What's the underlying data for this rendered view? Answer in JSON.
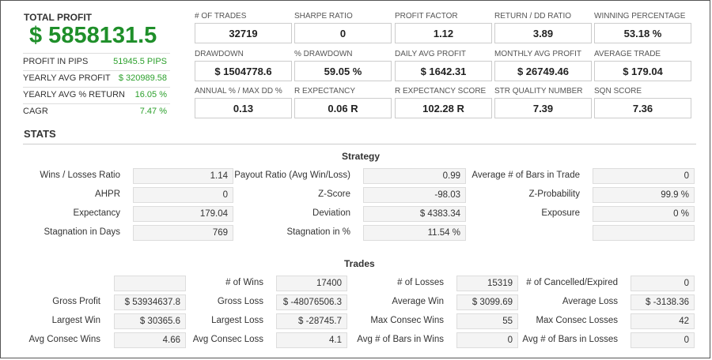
{
  "summary": {
    "total_profit_label": "TOTAL PROFIT",
    "total_profit_value": "$ 5858131.5",
    "rows": [
      {
        "label": "PROFIT IN PIPS",
        "value": "51945.5 PIPS"
      },
      {
        "label": "YEARLY AVG PROFIT",
        "value": "$ 320989.58"
      },
      {
        "label": "YEARLY AVG % RETURN",
        "value": "16.05 %"
      },
      {
        "label": "CAGR",
        "value": "7.47 %"
      }
    ]
  },
  "metrics": [
    {
      "label": "# OF TRADES",
      "value": "32719"
    },
    {
      "label": "SHARPE RATIO",
      "value": "0"
    },
    {
      "label": "PROFIT FACTOR",
      "value": "1.12"
    },
    {
      "label": "RETURN / DD RATIO",
      "value": "3.89"
    },
    {
      "label": "WINNING PERCENTAGE",
      "value": "53.18 %"
    },
    {
      "label": "DRAWDOWN",
      "value": "$ 1504778.6"
    },
    {
      "label": "% DRAWDOWN",
      "value": "59.05 %"
    },
    {
      "label": "DAILY AVG PROFIT",
      "value": "$ 1642.31"
    },
    {
      "label": "MONTHLY AVG PROFIT",
      "value": "$ 26749.46"
    },
    {
      "label": "AVERAGE TRADE",
      "value": "$ 179.04"
    },
    {
      "label": "ANNUAL % / MAX DD %",
      "value": "0.13"
    },
    {
      "label": "R EXPECTANCY",
      "value": "0.06 R"
    },
    {
      "label": "R EXPECTANCY SCORE",
      "value": "102.28 R"
    },
    {
      "label": "STR QUALITY NUMBER",
      "value": "7.39"
    },
    {
      "label": "SQN SCORE",
      "value": "7.36"
    }
  ],
  "stats_heading": "STATS",
  "strategy": {
    "title": "Strategy",
    "rows": [
      [
        {
          "label": "Wins / Losses Ratio",
          "value": "1.14"
        },
        {
          "label": "Payout Ratio (Avg Win/Loss)",
          "value": "0.99"
        },
        {
          "label": "Average # of Bars in Trade",
          "value": "0"
        }
      ],
      [
        {
          "label": "AHPR",
          "value": "0"
        },
        {
          "label": "Z-Score",
          "value": "-98.03"
        },
        {
          "label": "Z-Probability",
          "value": "99.9 %"
        }
      ],
      [
        {
          "label": "Expectancy",
          "value": "179.04"
        },
        {
          "label": "Deviation",
          "value": "$ 4383.34"
        },
        {
          "label": "Exposure",
          "value": "0 %"
        }
      ],
      [
        {
          "label": "Stagnation in Days",
          "value": "769"
        },
        {
          "label": "Stagnation in %",
          "value": "11.54 %"
        },
        {
          "label": "",
          "value": ""
        }
      ]
    ]
  },
  "trades": {
    "title": "Trades",
    "rows": [
      [
        {
          "label": "",
          "value": ""
        },
        {
          "label": "# of Wins",
          "value": "17400"
        },
        {
          "label": "# of Losses",
          "value": "15319"
        },
        {
          "label": "# of Cancelled/Expired",
          "value": "0"
        }
      ],
      [
        {
          "label": "Gross Profit",
          "value": "$ 53934637.8"
        },
        {
          "label": "Gross Loss",
          "value": "$ -48076506.3"
        },
        {
          "label": "Average Win",
          "value": "$ 3099.69"
        },
        {
          "label": "Average Loss",
          "value": "$ -3138.36"
        }
      ],
      [
        {
          "label": "Largest Win",
          "value": "$ 30365.6"
        },
        {
          "label": "Largest Loss",
          "value": "$ -28745.7"
        },
        {
          "label": "Max Consec Wins",
          "value": "55"
        },
        {
          "label": "Max Consec Losses",
          "value": "42"
        }
      ],
      [
        {
          "label": "Avg Consec Wins",
          "value": "4.66"
        },
        {
          "label": "Avg Consec Loss",
          "value": "4.1"
        },
        {
          "label": "Avg # of Bars in Wins",
          "value": "0"
        },
        {
          "label": "Avg # of Bars in Losses",
          "value": "0"
        }
      ]
    ]
  },
  "colors": {
    "profit_green": "#1f8f2a",
    "value_green": "#2ca02c"
  }
}
